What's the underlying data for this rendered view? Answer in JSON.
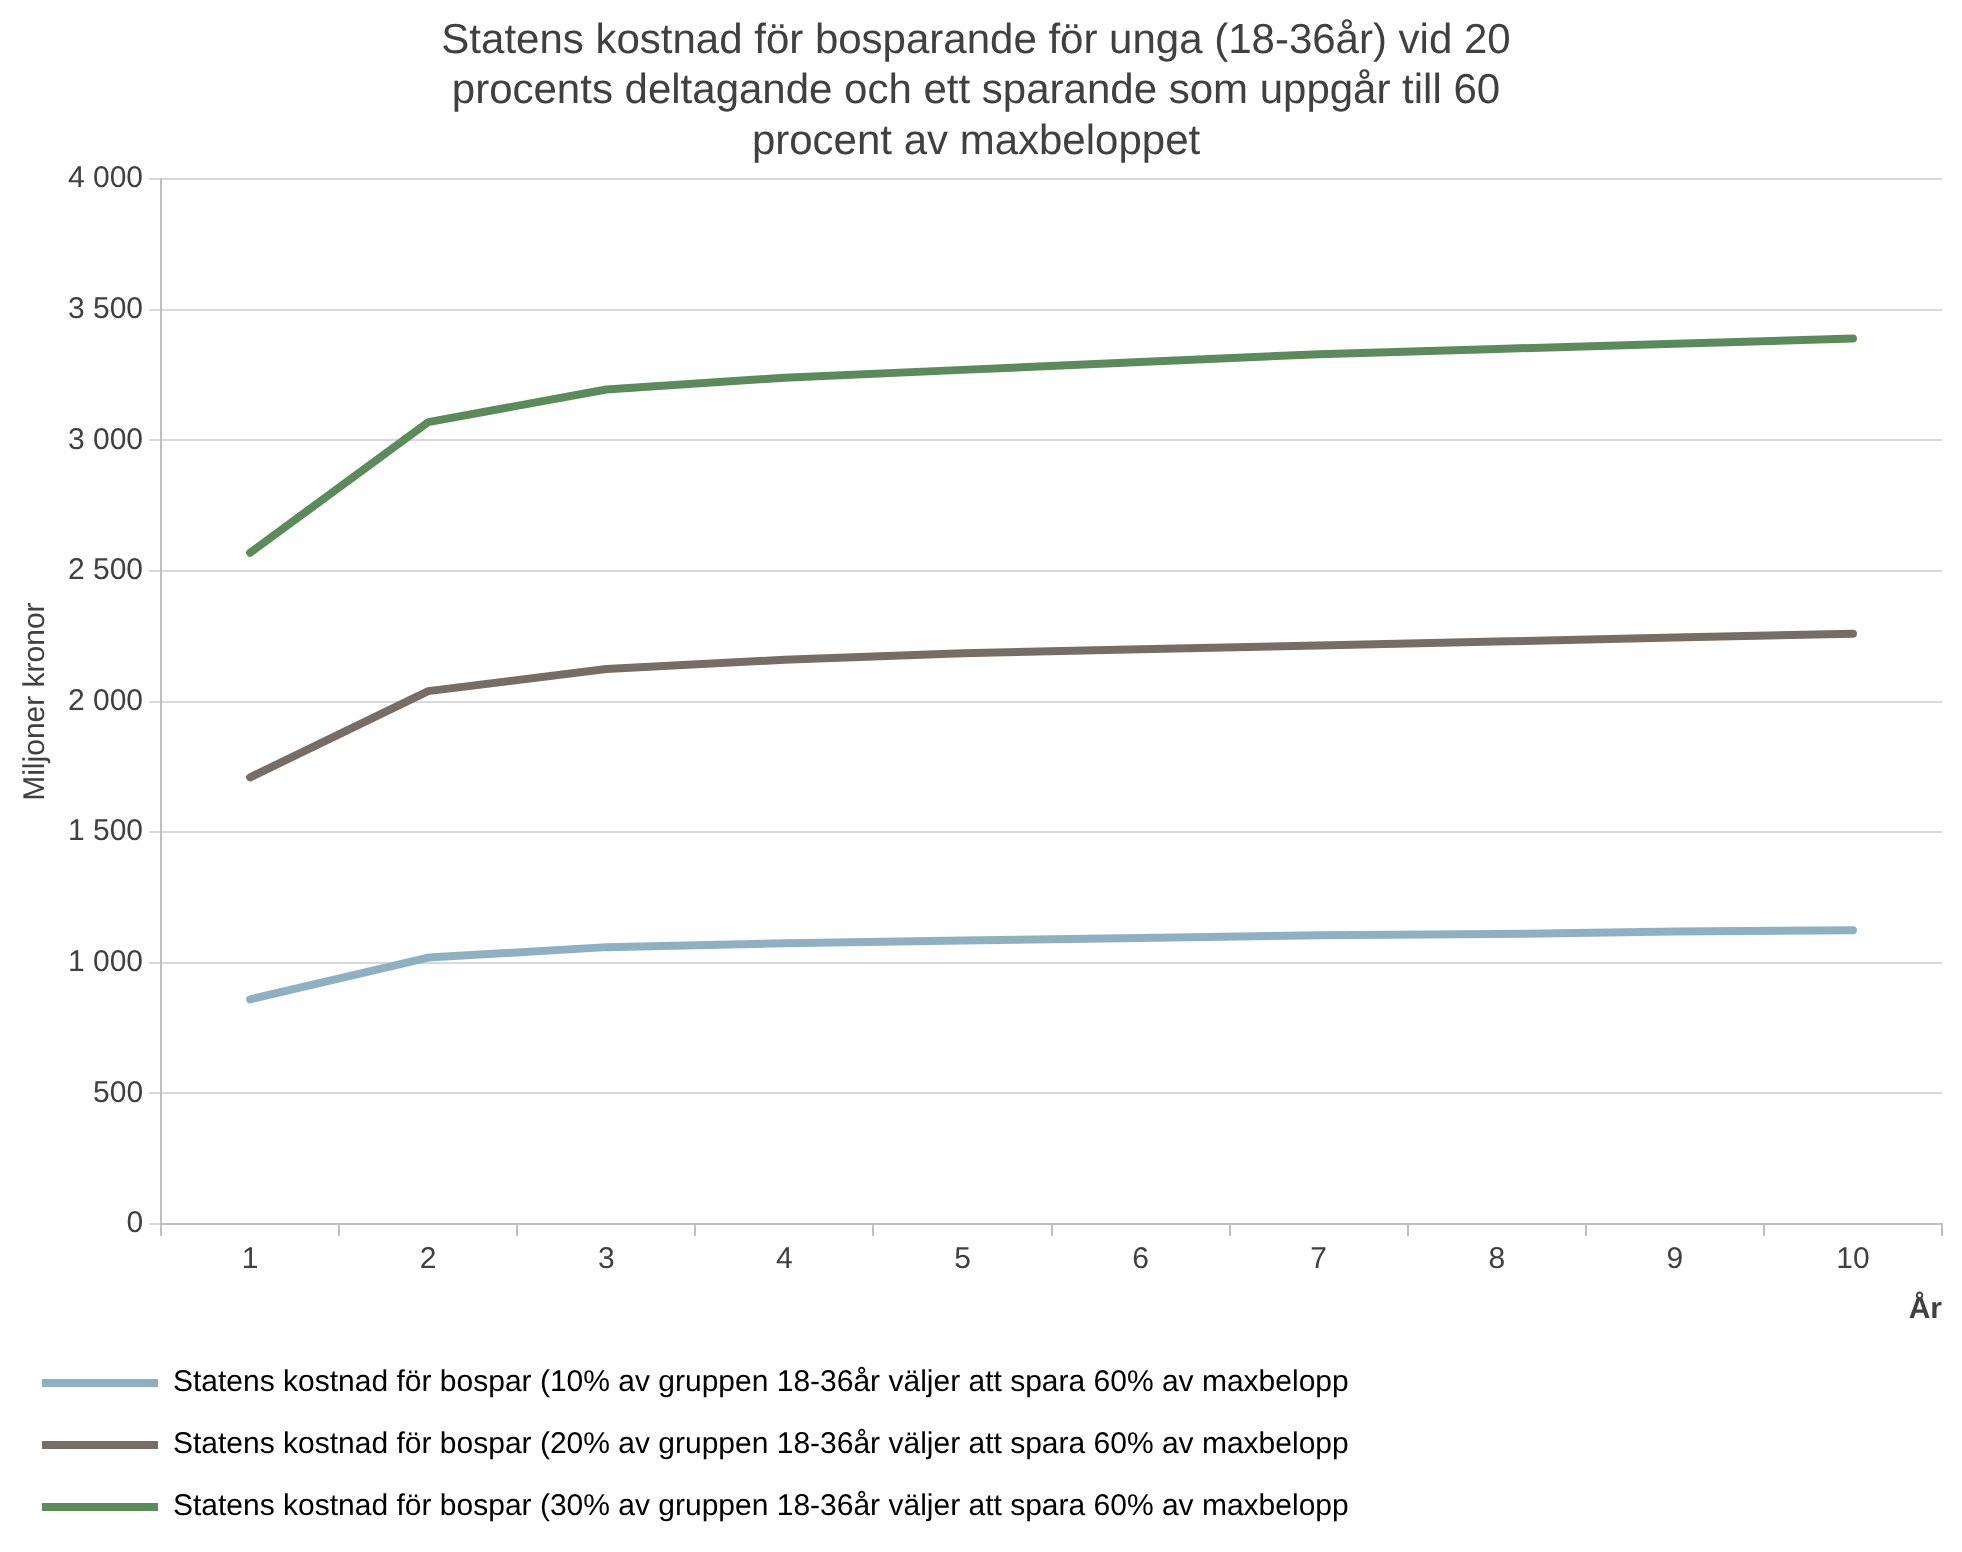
{
  "chart_data": {
    "type": "line",
    "title": "Statens kostnad för bosparande för unga (18-36år) vid 20 procents deltagande och ett sparande som uppgår till 60 procent av maxbeloppet",
    "ylabel": "Miljoner kronor",
    "xlabel": "År",
    "categories": [
      "1",
      "2",
      "3",
      "4",
      "5",
      "6",
      "7",
      "8",
      "9",
      "10"
    ],
    "series": [
      {
        "name": "Statens kostnad för bospar (10% av gruppen 18-36år väljer att spara 60% av maxbelopp",
        "color": "#8fb0c3",
        "values": [
          860,
          1020,
          1060,
          1075,
          1085,
          1095,
          1105,
          1110,
          1120,
          1125
        ]
      },
      {
        "name": "Statens kostnad för bospar (20% av gruppen 18-36år väljer att spara 60% av maxbelopp",
        "color": "#776d64",
        "values": [
          1710,
          2040,
          2125,
          2160,
          2185,
          2200,
          2215,
          2230,
          2245,
          2260
        ]
      },
      {
        "name": "Statens kostnad för bospar (30% av gruppen 18-36år väljer att spara 60% av maxbelopp",
        "color": "#5b8b5b",
        "values": [
          2570,
          3070,
          3195,
          3240,
          3270,
          3300,
          3330,
          3350,
          3370,
          3390
        ]
      }
    ],
    "ylim": [
      0,
      4000
    ],
    "yticks": [
      0,
      {
        "value": 500,
        "label": "500"
      },
      {
        "value": 1000,
        "label": "1 000"
      },
      {
        "value": 1500,
        "label": "1 500"
      },
      {
        "value": 2000,
        "label": "2 000"
      },
      {
        "value": 2500,
        "label": "2 500"
      },
      {
        "value": 3000,
        "label": "3 000"
      },
      {
        "value": 3500,
        "label": "3 500"
      },
      {
        "value": 4000,
        "label": "4 000"
      }
    ],
    "grid": "y",
    "legend": "bottom",
    "marker": "none",
    "line_style": "solid"
  }
}
